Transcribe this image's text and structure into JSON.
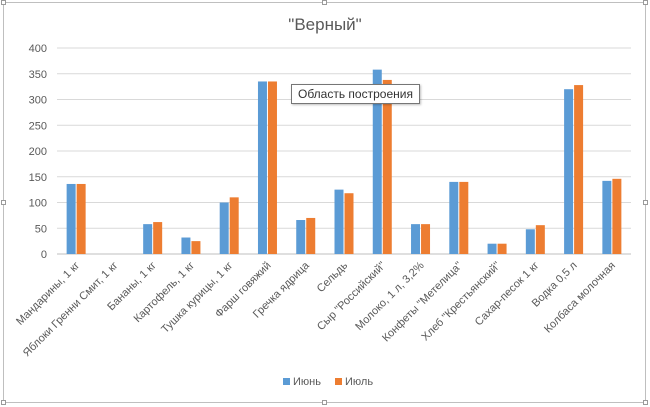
{
  "tooltip": "Область построения",
  "chart_data": {
    "type": "bar",
    "title": "\"Верный\"",
    "xlabel": "",
    "ylabel": "",
    "ylim": [
      0,
      400
    ],
    "yticks": [
      0,
      50,
      100,
      150,
      200,
      250,
      300,
      350,
      400
    ],
    "grid": true,
    "legend_position": "bottom",
    "categories": [
      "Мандарины, 1 кг",
      "Яблоки Гренни Смит, 1 кг",
      "Бананы, 1 кг",
      "Картофель, 1 кг",
      "Тушка курицы, 1 кг",
      "Фарш говяжий",
      "Гречка ядрица",
      "Сельдь",
      "Сыр \"Российский\"",
      "Молоко, 1 л, 3,2%",
      "Конфеты \"Метелица\"",
      "Хлеб \"Крестьянский\"",
      "Сахар-песок 1 кг",
      "Водка 0,5 л",
      "Колбаса молочная"
    ],
    "series": [
      {
        "name": "Июнь",
        "color": "#5b9bd5",
        "values": [
          136,
          0,
          58,
          32,
          100,
          335,
          66,
          125,
          358,
          58,
          140,
          20,
          48,
          320,
          142
        ]
      },
      {
        "name": "Июль",
        "color": "#ed7d31",
        "values": [
          136,
          0,
          62,
          25,
          110,
          335,
          70,
          118,
          338,
          58,
          140,
          20,
          56,
          328,
          146
        ]
      }
    ]
  }
}
